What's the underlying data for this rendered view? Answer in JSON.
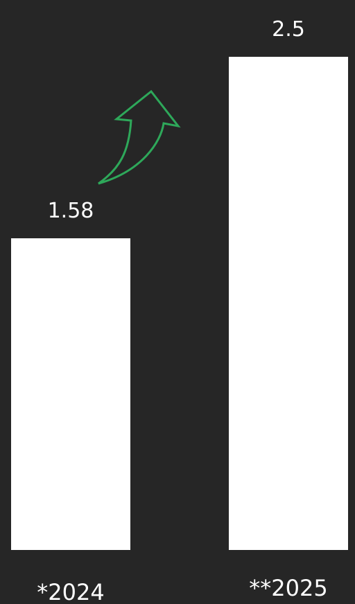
{
  "colors": {
    "background": "#262626",
    "bar": "#ffffff",
    "text": "#ffffff",
    "arrow": "#2ea85a"
  },
  "icons": {
    "trend": "curved-up-arrow-icon"
  },
  "chart_data": {
    "type": "bar",
    "categories": [
      "*2024",
      "**2025"
    ],
    "values": [
      1.58,
      2.5
    ],
    "value_labels": [
      "1.58",
      "2.5"
    ],
    "title": "",
    "xlabel": "",
    "ylabel": "",
    "ylim": [
      0,
      2.5
    ],
    "grid": false,
    "legend": "none"
  }
}
